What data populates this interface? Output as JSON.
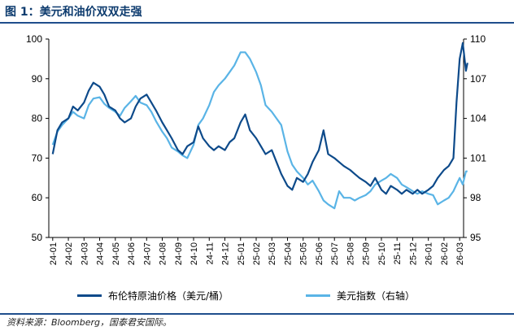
{
  "header": {
    "title": "图 1：美元和油价双双走强"
  },
  "source": "资料来源：Bloomberg，国泰君安国际。",
  "colors": {
    "brent": "#0d4a8a",
    "dxy": "#5ab4e6",
    "rule": "#1f4e8c"
  },
  "chart_data": {
    "type": "line",
    "title": "美元和油价双双走强",
    "categories": [
      "24-01",
      "24-02",
      "24-03",
      "24-04",
      "24-05",
      "24-06",
      "24-07",
      "24-08",
      "24-09",
      "24-10",
      "24-11",
      "24-12",
      "25-01",
      "25-02",
      "25-03",
      "25-04",
      "25-05",
      "25-06",
      "25-07",
      "25-08",
      "25-09",
      "25-10",
      "25-11",
      "25-12",
      "26-01",
      "26-02",
      "26-03"
    ],
    "left_axis": {
      "range": [
        50,
        100
      ],
      "ticks": [
        50,
        60,
        70,
        80,
        90,
        100
      ]
    },
    "right_axis": {
      "range": [
        95,
        110
      ],
      "ticks": [
        95,
        98,
        101,
        104,
        107,
        110
      ]
    },
    "grid": false,
    "legend_position": "bottom",
    "series": [
      {
        "name": "布伦特原油价格（美元/桶）",
        "axis": "left",
        "color": "#0d4a8a",
        "values": [
          [
            0,
            71
          ],
          [
            0.3,
            77
          ],
          [
            0.6,
            79
          ],
          [
            1,
            80
          ],
          [
            1.3,
            83
          ],
          [
            1.6,
            82
          ],
          [
            2,
            84
          ],
          [
            2.3,
            87
          ],
          [
            2.6,
            89
          ],
          [
            3,
            88
          ],
          [
            3.3,
            86
          ],
          [
            3.6,
            83
          ],
          [
            4,
            82
          ],
          [
            4.3,
            80
          ],
          [
            4.6,
            79
          ],
          [
            5,
            80
          ],
          [
            5.3,
            83
          ],
          [
            5.6,
            85
          ],
          [
            6,
            86
          ],
          [
            6.3,
            84
          ],
          [
            6.6,
            82
          ],
          [
            7,
            79
          ],
          [
            7.3,
            77
          ],
          [
            7.6,
            75
          ],
          [
            8,
            72
          ],
          [
            8.3,
            71
          ],
          [
            8.6,
            73
          ],
          [
            9,
            74
          ],
          [
            9.3,
            78
          ],
          [
            9.6,
            75
          ],
          [
            10,
            73
          ],
          [
            10.3,
            72
          ],
          [
            10.6,
            73
          ],
          [
            11,
            72
          ],
          [
            11.3,
            74
          ],
          [
            11.6,
            75
          ],
          [
            12,
            79
          ],
          [
            12.3,
            81
          ],
          [
            12.6,
            77
          ],
          [
            13,
            75
          ],
          [
            13.3,
            73
          ],
          [
            13.6,
            71
          ],
          [
            14,
            72
          ],
          [
            14.3,
            69
          ],
          [
            14.6,
            66
          ],
          [
            15,
            63
          ],
          [
            15.3,
            62
          ],
          [
            15.6,
            65
          ],
          [
            16,
            64
          ],
          [
            16.3,
            66
          ],
          [
            16.6,
            69
          ],
          [
            17,
            72
          ],
          [
            17.3,
            77
          ],
          [
            17.6,
            71
          ],
          [
            18,
            70
          ],
          [
            18.3,
            69
          ],
          [
            18.6,
            68
          ],
          [
            19,
            67
          ],
          [
            19.3,
            66
          ],
          [
            19.6,
            65
          ],
          [
            20,
            64
          ],
          [
            20.3,
            63
          ],
          [
            20.6,
            65
          ],
          [
            21,
            62
          ],
          [
            21.3,
            61
          ],
          [
            21.6,
            63
          ],
          [
            22,
            62
          ],
          [
            22.3,
            61
          ],
          [
            22.6,
            62
          ],
          [
            23,
            61
          ],
          [
            23.3,
            62
          ],
          [
            23.6,
            61
          ],
          [
            24,
            62
          ],
          [
            24.3,
            63
          ],
          [
            24.6,
            65
          ],
          [
            25,
            67
          ],
          [
            25.3,
            68
          ],
          [
            25.6,
            70
          ],
          [
            25.8,
            84
          ],
          [
            26,
            95
          ],
          [
            26.2,
            99
          ],
          [
            26.4,
            92
          ],
          [
            26.5,
            94
          ]
        ]
      },
      {
        "name": "美元指数（右轴）",
        "axis": "right",
        "color": "#5ab4e6",
        "values": [
          [
            0,
            102
          ],
          [
            0.3,
            103
          ],
          [
            0.6,
            103.5
          ],
          [
            1,
            104
          ],
          [
            1.3,
            104.5
          ],
          [
            1.6,
            104.2
          ],
          [
            2,
            104
          ],
          [
            2.3,
            105
          ],
          [
            2.6,
            105.5
          ],
          [
            3,
            105.6
          ],
          [
            3.3,
            105.1
          ],
          [
            3.6,
            104.8
          ],
          [
            4,
            104.5
          ],
          [
            4.3,
            104.2
          ],
          [
            4.6,
            104.8
          ],
          [
            5,
            105.3
          ],
          [
            5.3,
            105.7
          ],
          [
            5.6,
            105.2
          ],
          [
            6,
            105
          ],
          [
            6.3,
            104.5
          ],
          [
            6.6,
            103.8
          ],
          [
            7,
            103
          ],
          [
            7.3,
            102.5
          ],
          [
            7.6,
            101.8
          ],
          [
            8,
            101.5
          ],
          [
            8.3,
            101.2
          ],
          [
            8.6,
            101
          ],
          [
            9,
            102
          ],
          [
            9.3,
            103.5
          ],
          [
            9.6,
            104
          ],
          [
            10,
            105
          ],
          [
            10.3,
            106
          ],
          [
            10.6,
            106.5
          ],
          [
            11,
            107
          ],
          [
            11.3,
            107.5
          ],
          [
            11.6,
            108
          ],
          [
            12,
            109
          ],
          [
            12.3,
            109
          ],
          [
            12.6,
            108.5
          ],
          [
            13,
            107.5
          ],
          [
            13.3,
            106.5
          ],
          [
            13.6,
            105
          ],
          [
            14,
            104.5
          ],
          [
            14.3,
            104
          ],
          [
            14.6,
            103.5
          ],
          [
            15,
            101.5
          ],
          [
            15.3,
            100.5
          ],
          [
            15.6,
            100
          ],
          [
            16,
            99.5
          ],
          [
            16.3,
            99
          ],
          [
            16.6,
            99.3
          ],
          [
            17,
            98.5
          ],
          [
            17.3,
            97.8
          ],
          [
            17.6,
            97.5
          ],
          [
            18,
            97.2
          ],
          [
            18.3,
            98.5
          ],
          [
            18.6,
            98
          ],
          [
            19,
            98
          ],
          [
            19.3,
            97.8
          ],
          [
            19.6,
            98
          ],
          [
            20,
            98.2
          ],
          [
            20.3,
            98.5
          ],
          [
            20.6,
            99
          ],
          [
            21,
            99.3
          ],
          [
            21.3,
            99.5
          ],
          [
            21.6,
            99.8
          ],
          [
            22,
            99.5
          ],
          [
            22.3,
            99
          ],
          [
            22.6,
            98.8
          ],
          [
            23,
            98.5
          ],
          [
            23.3,
            98.3
          ],
          [
            23.6,
            98.5
          ],
          [
            24,
            98.3
          ],
          [
            24.3,
            98.2
          ],
          [
            24.6,
            97.5
          ],
          [
            25,
            97.8
          ],
          [
            25.3,
            98
          ],
          [
            25.6,
            98.5
          ],
          [
            25.8,
            99
          ],
          [
            26,
            99.5
          ],
          [
            26.2,
            99
          ],
          [
            26.4,
            100
          ],
          [
            26.5,
            100
          ]
        ]
      }
    ]
  }
}
